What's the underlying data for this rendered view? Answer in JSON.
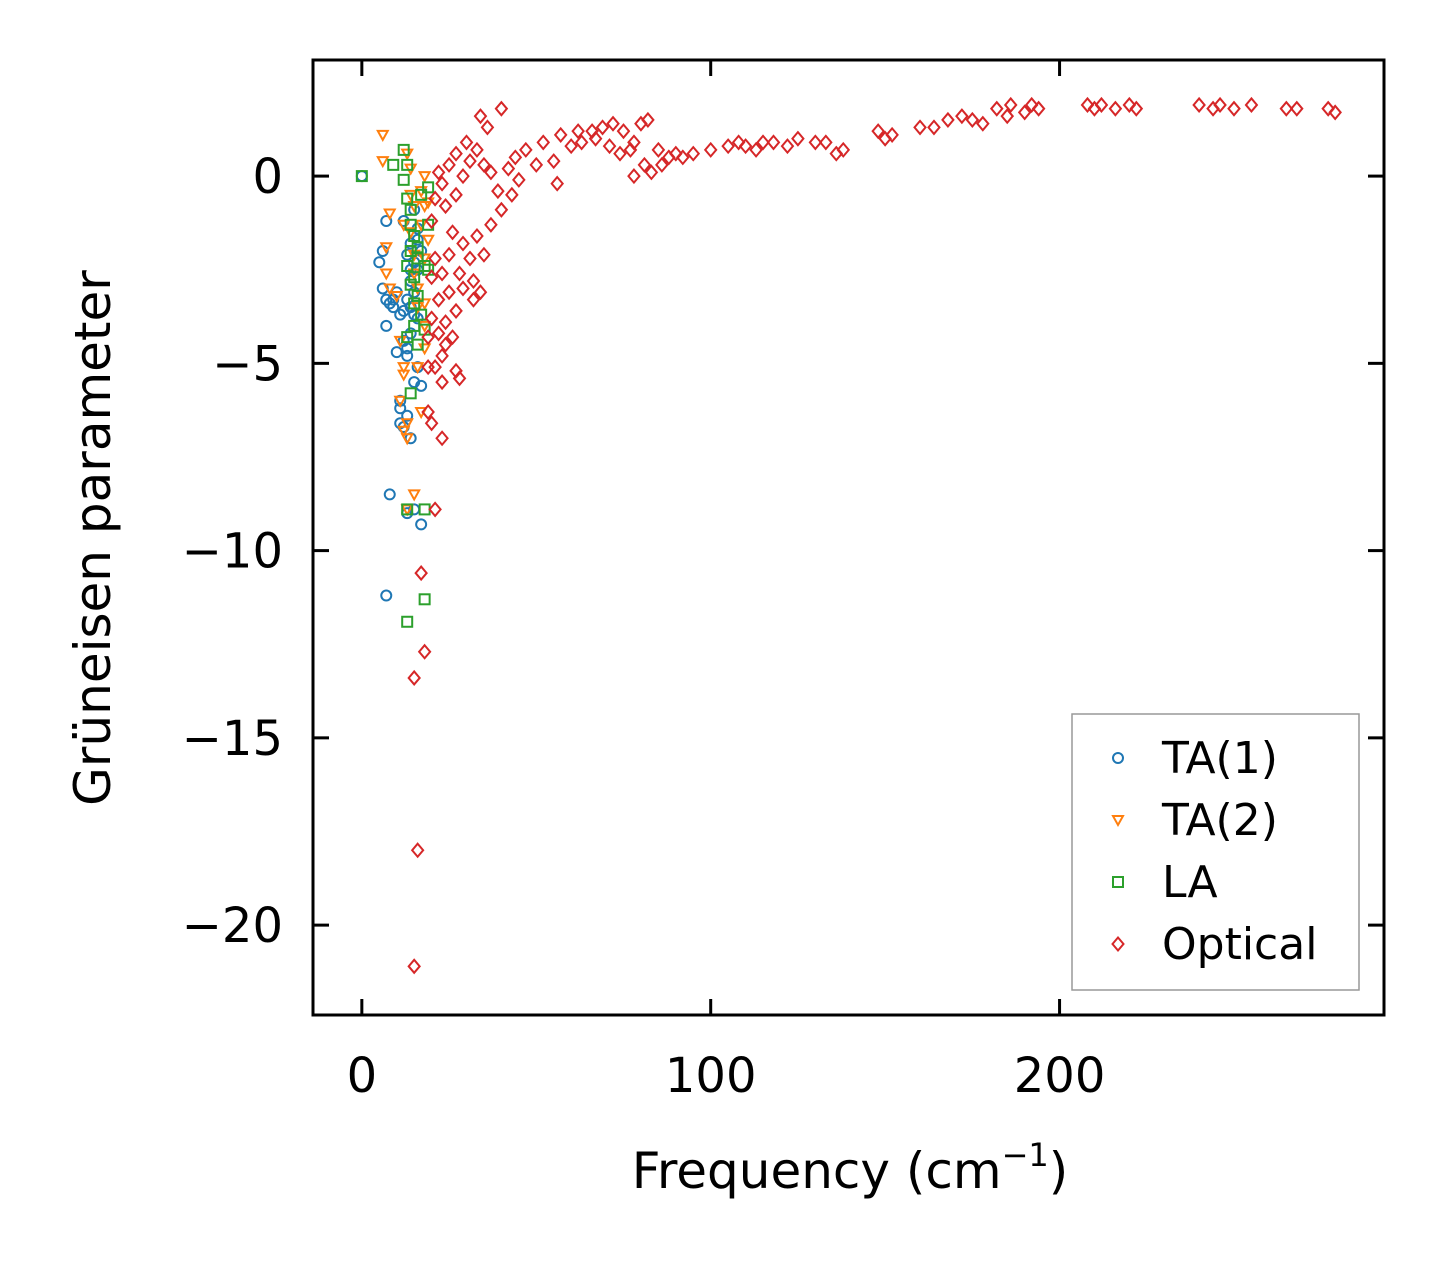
{
  "chart_data": {
    "type": "scatter",
    "title": "",
    "xlabel": "Frequency (cm",
    "xlabel_sup": "−1",
    "xlabel_close": ")",
    "ylabel": "Grüneisen parameter",
    "xlim": [
      -14,
      293
    ],
    "ylim": [
      -22.4,
      3.1
    ],
    "xticks": [
      0,
      100,
      200
    ],
    "yticks": [
      0,
      -5,
      -10,
      -15,
      -20
    ],
    "xtick_labels": [
      "0",
      "100",
      "200"
    ],
    "ytick_labels": [
      "0",
      "−5",
      "−10",
      "−15",
      "−20"
    ],
    "legend_position": "lower-right",
    "series": [
      {
        "name": "TA(1)",
        "marker": "circle",
        "color": "#1f77b4",
        "points": [
          [
            0,
            0
          ],
          [
            7,
            -1.2
          ],
          [
            5,
            -2.3
          ],
          [
            6,
            -3
          ],
          [
            7,
            -3.3
          ],
          [
            7,
            -4
          ],
          [
            9,
            -3.3
          ],
          [
            9,
            -3.5
          ],
          [
            10,
            -4.7
          ],
          [
            11,
            -6
          ],
          [
            11,
            -6.2
          ],
          [
            11,
            -6.6
          ],
          [
            12,
            -6.7
          ],
          [
            12,
            -4.4
          ],
          [
            12,
            -3.6
          ],
          [
            13,
            -3.3
          ],
          [
            13,
            -2.1
          ],
          [
            13,
            -4.8
          ],
          [
            13,
            -6.4
          ],
          [
            14,
            -7
          ],
          [
            14,
            -1.8
          ],
          [
            14,
            -2.8
          ],
          [
            14,
            -3.5
          ],
          [
            14,
            -4.2
          ],
          [
            15,
            -0.9
          ],
          [
            15,
            -2.3
          ],
          [
            15,
            -3.1
          ],
          [
            15,
            -3.7
          ],
          [
            15,
            -5.5
          ],
          [
            15,
            -8.9
          ],
          [
            16,
            -1.4
          ],
          [
            16,
            -1.7
          ],
          [
            16,
            -2.5
          ],
          [
            16,
            -3.8
          ],
          [
            16,
            -5.1
          ],
          [
            17,
            -5.6
          ],
          [
            17,
            -2
          ],
          [
            17,
            -9.3
          ],
          [
            8,
            -8.5
          ],
          [
            7,
            -11.2
          ],
          [
            13,
            -9
          ],
          [
            6,
            -2
          ],
          [
            8,
            -3.4
          ],
          [
            10,
            -3.1
          ],
          [
            11,
            -3.7
          ],
          [
            12,
            -1.2
          ],
          [
            13,
            -4.6
          ],
          [
            14,
            -2.5
          ]
        ]
      },
      {
        "name": "TA(2)",
        "marker": "triangle-down",
        "color": "#ff7f0e",
        "points": [
          [
            6,
            1.1
          ],
          [
            6,
            0.4
          ],
          [
            8,
            -1
          ],
          [
            7,
            -1.9
          ],
          [
            7,
            -2.6
          ],
          [
            8,
            -3
          ],
          [
            10,
            -3.2
          ],
          [
            11,
            -4.4
          ],
          [
            12,
            -5.1
          ],
          [
            12,
            -5.3
          ],
          [
            11,
            -6
          ],
          [
            12,
            -6.8
          ],
          [
            13,
            -7
          ],
          [
            13,
            -6.6
          ],
          [
            13,
            -8.9
          ],
          [
            15,
            -8.5
          ],
          [
            14,
            -1.5
          ],
          [
            14,
            -0.5
          ],
          [
            15,
            -0.8
          ],
          [
            15,
            -2.6
          ],
          [
            16,
            -3
          ],
          [
            16,
            -3.5
          ],
          [
            17,
            -0.4
          ],
          [
            17,
            -1.3
          ],
          [
            18,
            -0.8
          ],
          [
            18,
            -2.2
          ],
          [
            18,
            -3.4
          ],
          [
            18,
            -4
          ],
          [
            18,
            -4.6
          ],
          [
            17,
            -6.3
          ],
          [
            18,
            0
          ],
          [
            19,
            -0.7
          ],
          [
            19,
            -1.7
          ],
          [
            16,
            -5.1
          ],
          [
            13,
            0.6
          ],
          [
            14,
            0.2
          ],
          [
            12,
            -1.3
          ],
          [
            15,
            -2.1
          ]
        ]
      },
      {
        "name": "LA",
        "marker": "square",
        "color": "#2ca02c",
        "points": [
          [
            0,
            0
          ],
          [
            9,
            0.3
          ],
          [
            12,
            0.7
          ],
          [
            12,
            -0.1
          ],
          [
            13,
            0.3
          ],
          [
            13,
            -0.6
          ],
          [
            14,
            -0.9
          ],
          [
            14,
            -1.3
          ],
          [
            13,
            -2.4
          ],
          [
            14,
            -2
          ],
          [
            15,
            -2.7
          ],
          [
            15,
            -1.6
          ],
          [
            16,
            -2.2
          ],
          [
            16,
            -3.2
          ],
          [
            15,
            -4
          ],
          [
            16,
            -4.5
          ],
          [
            17,
            -3.7
          ],
          [
            18,
            -4.1
          ],
          [
            18,
            -2.4
          ],
          [
            19,
            -1.3
          ],
          [
            19,
            -2.5
          ],
          [
            19,
            -0.3
          ],
          [
            14,
            -5.8
          ],
          [
            13,
            -8.9
          ],
          [
            18,
            -8.9
          ],
          [
            18,
            -11.3
          ],
          [
            13,
            -11.9
          ],
          [
            17,
            -0.5
          ],
          [
            14,
            -2.9
          ],
          [
            13,
            -4.3
          ],
          [
            16,
            -1.9
          ],
          [
            15,
            -3.4
          ]
        ]
      },
      {
        "name": "Optical",
        "marker": "diamond",
        "color": "#d62728",
        "points": [
          [
            15,
            -13.4
          ],
          [
            17,
            -10.6
          ],
          [
            18,
            -12.7
          ],
          [
            16,
            -18
          ],
          [
            15,
            -21.1
          ],
          [
            19,
            -6.3
          ],
          [
            20,
            -6.6
          ],
          [
            21,
            -8.9
          ],
          [
            23,
            -7
          ],
          [
            19,
            -5.1
          ],
          [
            21,
            -5.1
          ],
          [
            23,
            -4.8
          ],
          [
            27,
            -5.2
          ],
          [
            28,
            -5.4
          ],
          [
            32,
            -3.3
          ],
          [
            34,
            -3.1
          ],
          [
            35,
            -2.1
          ],
          [
            37,
            -1.3
          ],
          [
            40,
            -0.9
          ],
          [
            43,
            -0.5
          ],
          [
            45,
            -0.1
          ],
          [
            50,
            0.3
          ],
          [
            55,
            0.4
          ],
          [
            56,
            -0.2
          ],
          [
            60,
            0.8
          ],
          [
            63,
            0.9
          ],
          [
            66,
            1.2
          ],
          [
            69,
            1.3
          ],
          [
            72,
            1.4
          ],
          [
            75,
            1.2
          ],
          [
            78,
            0.9
          ],
          [
            80,
            1.4
          ],
          [
            82,
            1.5
          ],
          [
            78,
            0
          ],
          [
            83,
            0.1
          ],
          [
            86,
            0.3
          ],
          [
            88,
            0.5
          ],
          [
            90,
            0.6
          ],
          [
            95,
            0.6
          ],
          [
            105,
            0.8
          ],
          [
            110,
            0.8
          ],
          [
            115,
            0.9
          ],
          [
            118,
            0.9
          ],
          [
            125,
            1
          ],
          [
            130,
            0.9
          ],
          [
            138,
            0.7
          ],
          [
            148,
            1.2
          ],
          [
            152,
            1.1
          ],
          [
            160,
            1.3
          ],
          [
            168,
            1.5
          ],
          [
            172,
            1.6
          ],
          [
            178,
            1.4
          ],
          [
            182,
            1.8
          ],
          [
            186,
            1.9
          ],
          [
            190,
            1.7
          ],
          [
            194,
            1.8
          ],
          [
            208,
            1.9
          ],
          [
            212,
            1.9
          ],
          [
            216,
            1.8
          ],
          [
            222,
            1.8
          ],
          [
            240,
            1.9
          ],
          [
            246,
            1.9
          ],
          [
            250,
            1.8
          ],
          [
            265,
            1.8
          ],
          [
            277,
            1.8
          ],
          [
            34,
            1.6
          ],
          [
            40,
            1.8
          ],
          [
            36,
            1.3
          ],
          [
            30,
            0.9
          ],
          [
            27,
            0.6
          ],
          [
            25,
            0.3
          ],
          [
            22,
            0.1
          ],
          [
            20,
            -1.2
          ],
          [
            21,
            -2.2
          ],
          [
            22,
            -3.3
          ],
          [
            24,
            -3.9
          ],
          [
            26,
            -4.3
          ],
          [
            25,
            -3.1
          ],
          [
            28,
            -2.6
          ],
          [
            31,
            -2.2
          ],
          [
            33,
            -1.6
          ],
          [
            29,
            -1.8
          ],
          [
            26,
            -1.5
          ],
          [
            24,
            -0.8
          ],
          [
            23,
            -0.2
          ],
          [
            27,
            -0.5
          ],
          [
            29,
            0
          ],
          [
            31,
            0.4
          ],
          [
            33,
            0.7
          ],
          [
            35,
            0.3
          ],
          [
            37,
            0.1
          ],
          [
            39,
            -0.4
          ],
          [
            42,
            0.2
          ],
          [
            44,
            0.5
          ],
          [
            47,
            0.7
          ],
          [
            52,
            0.9
          ],
          [
            57,
            1.1
          ],
          [
            62,
            1.2
          ],
          [
            67,
            1
          ],
          [
            71,
            0.8
          ],
          [
            74,
            0.6
          ],
          [
            77,
            0.7
          ],
          [
            81,
            0.3
          ],
          [
            85,
            0.7
          ],
          [
            92,
            0.5
          ],
          [
            100,
            0.7
          ],
          [
            108,
            0.9
          ],
          [
            113,
            0.7
          ],
          [
            122,
            0.8
          ],
          [
            133,
            0.9
          ],
          [
            136,
            0.6
          ],
          [
            150,
            1
          ],
          [
            164,
            1.3
          ],
          [
            175,
            1.5
          ],
          [
            185,
            1.6
          ],
          [
            192,
            1.9
          ],
          [
            210,
            1.8
          ],
          [
            220,
            1.9
          ],
          [
            244,
            1.8
          ],
          [
            255,
            1.9
          ],
          [
            268,
            1.8
          ],
          [
            279,
            1.7
          ],
          [
            21,
            -0.6
          ],
          [
            23,
            -2.6
          ],
          [
            25,
            -2.1
          ],
          [
            27,
            -3.6
          ],
          [
            29,
            -3
          ],
          [
            32,
            -2.8
          ],
          [
            20,
            -3.8
          ],
          [
            22,
            -4.2
          ],
          [
            23,
            -5.5
          ],
          [
            24,
            -4.5
          ],
          [
            19,
            -4.3
          ],
          [
            20,
            -2.7
          ]
        ]
      }
    ]
  }
}
